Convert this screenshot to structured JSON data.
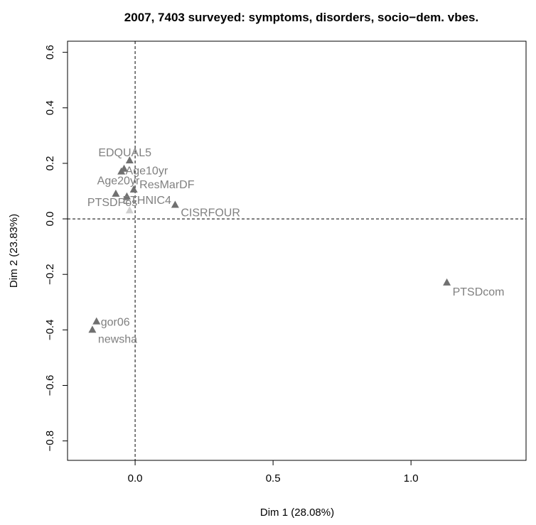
{
  "chart_data": {
    "type": "scatter",
    "title": "2007, 7403 surveyed: symptoms, disorders, socio−dem. vbes.",
    "xlabel": "Dim 1 (28.08%)",
    "ylabel": "Dim 2 (23.83%)",
    "xlim": [
      -0.245,
      1.417
    ],
    "ylim": [
      -0.87,
      0.64
    ],
    "xticks": [
      0.0,
      0.5,
      1.0
    ],
    "xtick_labels": [
      "0.0",
      "0.5",
      "1.0"
    ],
    "yticks": [
      -0.8,
      -0.6,
      -0.4,
      -0.2,
      0.0,
      0.2,
      0.4,
      0.6
    ],
    "ytick_labels": [
      "−0.8",
      "−0.6",
      "−0.4",
      "−0.2",
      "0.0",
      "0.2",
      "0.4",
      "0.6"
    ],
    "grid": false,
    "reference_lines": {
      "x": 0,
      "y": 0
    },
    "marker_color": "#707070",
    "label_color": "#808080",
    "points": [
      {
        "label": "EDQUAL5",
        "x": -0.02,
        "y": 0.21
      },
      {
        "label": "Age10yr",
        "x": -0.04,
        "y": 0.18
      },
      {
        "label": "Age20yr",
        "x": -0.05,
        "y": 0.17
      },
      {
        "label": "ResMarDF",
        "x": -0.005,
        "y": 0.105
      },
      {
        "label": "PTSDPos",
        "x": -0.07,
        "y": 0.09
      },
      {
        "label": "ETHNIC4",
        "x": -0.03,
        "y": 0.08
      },
      {
        "label": "CISRFOUR",
        "x": 0.145,
        "y": 0.05
      },
      {
        "label": "",
        "x": -0.02,
        "y": 0.03
      },
      {
        "label": "PTSDcom",
        "x": 1.13,
        "y": -0.23
      },
      {
        "label": "gor06",
        "x": -0.14,
        "y": -0.37
      },
      {
        "label": "newsha",
        "x": -0.155,
        "y": -0.4
      }
    ]
  }
}
